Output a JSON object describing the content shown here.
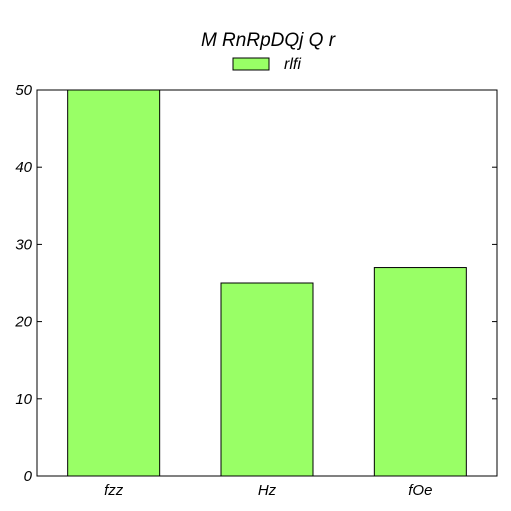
{
  "chart_data": {
    "type": "bar",
    "title": "M RnRpDQj Q r",
    "categories": [
      "fzz",
      "Hz",
      "fOe"
    ],
    "series": [
      {
        "name": "rlfi",
        "values": [
          50,
          25,
          27
        ],
        "color": "#99ff66"
      }
    ],
    "xlabel": "",
    "ylabel": "",
    "ylim": [
      0,
      50
    ],
    "yticks": [
      0,
      10,
      20,
      30,
      40,
      50
    ],
    "grid": false,
    "legend_position": "top-center"
  }
}
